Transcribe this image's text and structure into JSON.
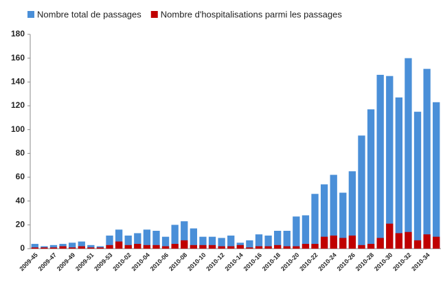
{
  "chart_data": {
    "type": "bar",
    "categories": [
      "2009-45",
      null,
      "2009-47",
      null,
      "2009-49",
      null,
      "2009-51",
      null,
      "2009-53",
      null,
      "2010-02",
      null,
      "2010-04",
      null,
      "2010-06",
      null,
      "2010-08",
      null,
      "2010-10",
      null,
      "2010-12",
      null,
      "2010-14",
      null,
      "2010-16",
      null,
      "2010-18",
      null,
      "2010-20",
      null,
      "2010-22",
      null,
      "2010-24",
      null,
      "2010-26",
      null,
      "2010-28",
      null,
      "2010-30",
      null,
      "2010-32",
      null,
      "2010-34",
      null
    ],
    "series": [
      {
        "name": "Nombre total de passages",
        "color": "#4a8fd8",
        "values": [
          4,
          2,
          3,
          4,
          5,
          6,
          3,
          2,
          11,
          16,
          11,
          13,
          16,
          15,
          10,
          20,
          23,
          17,
          10,
          10,
          9,
          11,
          5,
          7,
          12,
          11,
          15,
          15,
          27,
          28,
          46,
          54,
          62,
          47,
          65,
          95,
          117,
          146,
          145,
          127,
          160,
          115,
          151,
          123
        ]
      },
      {
        "name": "Nombre d'hospitalisations parmi les passages",
        "color": "#c00000",
        "values": [
          1,
          1,
          1,
          2,
          1,
          2,
          1,
          1,
          3,
          6,
          3,
          4,
          3,
          3,
          2,
          4,
          7,
          3,
          3,
          3,
          2,
          2,
          3,
          1,
          2,
          2,
          3,
          2,
          2,
          4,
          4,
          10,
          11,
          9,
          11,
          3,
          4,
          9,
          21,
          13,
          14,
          7,
          12,
          10
        ]
      }
    ],
    "ylim": [
      0,
      180
    ],
    "yticks": [
      0,
      20,
      40,
      60,
      80,
      100,
      120,
      140,
      160,
      180
    ],
    "grid": false,
    "legend": "top"
  }
}
